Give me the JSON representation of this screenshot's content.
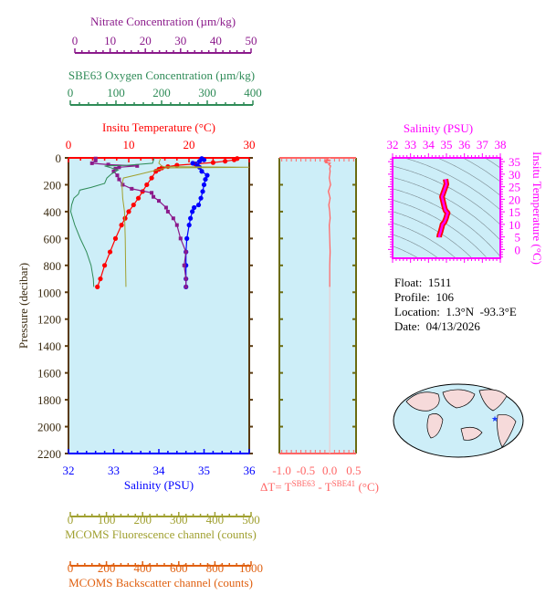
{
  "colors": {
    "temperature": "#ff0000",
    "salinity": "#0000ff",
    "nitrate": "#8b1a8b",
    "oxygen": "#2e8b57",
    "fluorescence": "#a0a030",
    "backscatter": "#e06010",
    "delta_t": "#ff6666",
    "ts": "#ff00ff",
    "plot_bg": "#cdeef8",
    "frame": "#5a3a10"
  },
  "float_info": {
    "float": "Float:  1511",
    "profile": "Profile:  106",
    "location": "Location:  1.3°N  -93.3°E",
    "date": "Date:  04/13/2026"
  },
  "map": {
    "marker": "blue star near 1.3°N, 93.3°W"
  },
  "chart_data": [
    {
      "type": "line",
      "title": "",
      "ylabel": "Pressure (decibar)",
      "ylim": [
        2200,
        0
      ],
      "yticks": [
        0,
        200,
        400,
        600,
        800,
        1000,
        1200,
        1400,
        1600,
        1800,
        2000,
        2200
      ],
      "axes": {
        "temperature": {
          "label": "Insitu Temperature (°C)",
          "range": [
            0,
            30
          ],
          "ticks": [
            0,
            10,
            20,
            30
          ]
        },
        "salinity": {
          "label": "Salinity (PSU)",
          "range": [
            32,
            36
          ],
          "ticks": [
            32,
            33,
            34,
            35,
            36
          ]
        },
        "nitrate": {
          "label": "Nitrate Concentration (µm/kg)",
          "range": [
            0,
            50
          ],
          "ticks": [
            0,
            10,
            20,
            30,
            40,
            50
          ]
        },
        "oxygen": {
          "label": "SBE63 Oxygen Concentration (µm/kg)",
          "range": [
            0,
            400
          ],
          "ticks": [
            0,
            100,
            200,
            300,
            400
          ]
        },
        "fluorescence": {
          "label": "MCOMS Fluorescence channel (counts)",
          "range": [
            0,
            500
          ],
          "ticks": [
            0,
            100,
            200,
            300,
            400,
            500
          ]
        },
        "backscatter": {
          "label": "MCOMS Backscatter channel (counts)",
          "range": [
            0,
            1000
          ],
          "ticks": [
            0,
            200,
            400,
            600,
            800,
            1000
          ]
        }
      },
      "series": [
        {
          "axis": "temperature",
          "markers": true,
          "pressure": [
            5,
            15,
            25,
            35,
            45,
            55,
            65,
            75,
            85,
            100,
            150,
            200,
            250,
            300,
            350,
            400,
            450,
            500,
            600,
            700,
            800,
            900,
            960
          ],
          "values": [
            28,
            27.5,
            26,
            24,
            21,
            18,
            16.5,
            15.5,
            15,
            14.5,
            13.8,
            13,
            12.3,
            11.6,
            10.8,
            10,
            9.4,
            8.8,
            7.8,
            6.9,
            6,
            5.3,
            4.8
          ]
        },
        {
          "axis": "salinity",
          "markers": true,
          "pressure": [
            5,
            15,
            25,
            40,
            55,
            70,
            100,
            130,
            160,
            200,
            250,
            300,
            350,
            370,
            400,
            450,
            500,
            600,
            700,
            800,
            900,
            960
          ],
          "values": [
            34.95,
            35,
            34.9,
            34.75,
            34.85,
            34.9,
            34.95,
            35.07,
            35.03,
            35,
            34.97,
            34.93,
            34.88,
            34.78,
            34.74,
            34.7,
            34.67,
            34.62,
            34.6,
            34.6,
            34.6,
            34.6
          ]
        },
        {
          "axis": "nitrate",
          "markers": true,
          "pressure": [
            5,
            20,
            40,
            50,
            60,
            70,
            80,
            100,
            130,
            160,
            200,
            230,
            260,
            290,
            320,
            370,
            400,
            450,
            500,
            600,
            700,
            800,
            900,
            960
          ],
          "values": [
            7.5,
            7.5,
            6.5,
            11,
            19,
            14,
            13,
            12.5,
            13.5,
            14,
            15,
            17.5,
            23,
            23.5,
            25,
            27,
            27.5,
            29,
            30,
            31,
            32.5,
            32,
            32.5,
            32.5
          ]
        },
        {
          "axis": "oxygen",
          "markers": false,
          "pressure": [
            0,
            40,
            55,
            60,
            70,
            90,
            120,
            150,
            190,
            220,
            240,
            270,
            300,
            350,
            400,
            500,
            600,
            700,
            800,
            900,
            960
          ],
          "values": [
            190,
            186,
            130,
            80,
            90,
            110,
            95,
            85,
            80,
            50,
            25,
            22,
            12,
            7,
            5,
            14,
            26,
            40,
            50,
            55,
            56
          ]
        },
        {
          "axis": "fluorescence",
          "markers": false,
          "pressure": [
            0,
            40,
            65,
            70,
            75,
            90,
            120,
            150,
            200,
            300,
            400,
            600,
            800,
            960
          ],
          "values": [
            255,
            250,
            260,
            500,
            270,
            245,
            200,
            152,
            148,
            150,
            155,
            157,
            158,
            159
          ]
        }
      ]
    },
    {
      "type": "line",
      "xlabel": "ΔT= T^SBE63 - T^SBE41 (°C)",
      "xlabel_parts": {
        "prefix": "ΔT= T",
        "sup1": "SBE63",
        "mid": " - T",
        "sup2": "SBE41",
        "suffix": " (°C)"
      },
      "xticks": [
        -1.0,
        -0.5,
        0.0,
        0.5
      ],
      "xtick_labels": [
        "-1.0",
        "-0.5",
        "0.0",
        "0.5"
      ],
      "ylim": [
        2200,
        0
      ],
      "series": [
        {
          "pressure": [
            5,
            15,
            20,
            25,
            30,
            35,
            40,
            50,
            60,
            80,
            100,
            150,
            200,
            250,
            300,
            350,
            400,
            450,
            500,
            600,
            700,
            800,
            900,
            960
          ],
          "values": [
            -0.02,
            -0.08,
            0.02,
            -0.12,
            -0.05,
            -0.1,
            0.01,
            -0.02,
            0.02,
            0.0,
            0.01,
            -0.01,
            0.02,
            -0.03,
            0.01,
            -0.02,
            0.0,
            0.01,
            -0.01,
            0.0,
            0.01,
            0.0,
            0.0,
            0.0
          ]
        }
      ]
    },
    {
      "type": "scatter",
      "xlabel": "Salinity (PSU)",
      "ylabel": "Insitu Temperature (°C)",
      "xlim": [
        32,
        38
      ],
      "xticks": [
        32,
        33,
        34,
        35,
        36,
        37,
        38
      ],
      "ylim": [
        -3.5,
        36.5
      ],
      "yticks": [
        0,
        5,
        10,
        15,
        20,
        25,
        30,
        35
      ],
      "density_contours": true,
      "series": [
        {
          "salinity": [
            34.6,
            34.6,
            34.62,
            34.67,
            34.7,
            34.74,
            34.78,
            34.88,
            34.93,
            34.97,
            35.0,
            35.03,
            35.07,
            34.95,
            34.9,
            34.85,
            34.75,
            34.9,
            35.0,
            34.95
          ],
          "temperature": [
            4.8,
            5.3,
            6,
            6.9,
            7.8,
            8.8,
            10,
            10.8,
            11.6,
            12.3,
            13,
            13.8,
            14.5,
            15.5,
            16.5,
            18,
            21,
            24,
            26,
            28
          ]
        }
      ]
    }
  ]
}
